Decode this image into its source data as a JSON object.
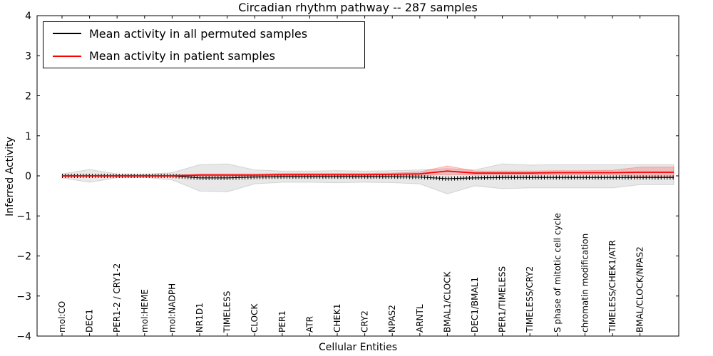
{
  "chart_data": {
    "type": "line",
    "title": "Circadian rhythm pathway -- 287 samples",
    "xlabel": "Cellular Entities",
    "ylabel": "Inferred Activity",
    "ylim": [
      -4,
      4
    ],
    "y_tick_labels": [
      "4",
      "3",
      "2",
      "1",
      "0",
      "−1",
      "−2",
      "−3",
      "−4"
    ],
    "grid": false,
    "legend_position": "upper left",
    "categories": [
      "mol:CO",
      "DEC1",
      "PER1-2 / CRY1-2",
      "mol:HEME",
      "mol:NADPH",
      "NR1D1",
      "TIMELESS",
      "CLOCK",
      "PER1",
      "ATR",
      "CHEK1",
      "CRY2",
      "NPAS2",
      "ARNTL",
      "BMAL1/CLOCK",
      "DEC1/BMAL1",
      "PER1/TIMELESS",
      "TIMELESS/CRY2",
      "S phase of mitotic cell cycle",
      "chromatin modification",
      "TIMELESS/CHEK1/ATR",
      "BMAL/CLOCK/NPAS2"
    ],
    "series": [
      {
        "name": "Mean activity in all permuted samples",
        "color": "#000000",
        "values": [
          0,
          0,
          0,
          0,
          0,
          -0.05,
          -0.05,
          -0.03,
          -0.02,
          -0.02,
          -0.02,
          -0.02,
          -0.02,
          -0.03,
          -0.07,
          -0.05,
          -0.04,
          -0.04,
          -0.04,
          -0.04,
          -0.04,
          -0.04
        ]
      },
      {
        "name": "Mean activity in patient samples",
        "color": "#ff0000",
        "values": [
          0,
          0,
          0,
          0,
          0,
          0.02,
          0.02,
          0.02,
          0.03,
          0.03,
          0.03,
          0.03,
          0.04,
          0.05,
          0.12,
          0.07,
          0.07,
          0.07,
          0.08,
          0.08,
          0.08,
          0.09
        ]
      }
    ],
    "bands": [
      {
        "name": "permuted-samples-range",
        "fill": "rgba(0,0,0,0.09)",
        "edge": "rgba(0,0,0,0.13)",
        "upper": [
          0.05,
          0.16,
          0.05,
          0.04,
          0.08,
          0.28,
          0.3,
          0.15,
          0.12,
          0.12,
          0.13,
          0.12,
          0.13,
          0.15,
          0.18,
          0.15,
          0.3,
          0.27,
          0.28,
          0.28,
          0.28,
          0.28
        ],
        "lower": [
          -0.05,
          -0.16,
          -0.05,
          -0.04,
          -0.1,
          -0.38,
          -0.4,
          -0.2,
          -0.16,
          -0.16,
          -0.17,
          -0.16,
          -0.17,
          -0.2,
          -0.45,
          -0.25,
          -0.32,
          -0.3,
          -0.3,
          -0.3,
          -0.3,
          -0.22
        ]
      },
      {
        "name": "patient-samples-range",
        "fill": "rgba(255,0,0,0.18)",
        "edge": "rgba(255,0,0,0.22)",
        "upper": [
          0.02,
          0.02,
          0.02,
          0.02,
          0.02,
          0.05,
          0.05,
          0.05,
          0.06,
          0.06,
          0.06,
          0.06,
          0.07,
          0.1,
          0.25,
          0.12,
          0.12,
          0.12,
          0.13,
          0.13,
          0.14,
          0.22
        ],
        "lower": [
          -0.02,
          -0.02,
          -0.02,
          -0.02,
          -0.02,
          -0.01,
          -0.01,
          -0.01,
          0.0,
          0.0,
          0.0,
          0.0,
          0.01,
          0.01,
          0.03,
          0.02,
          0.02,
          0.02,
          0.03,
          0.03,
          0.03,
          -0.02
        ]
      }
    ]
  }
}
